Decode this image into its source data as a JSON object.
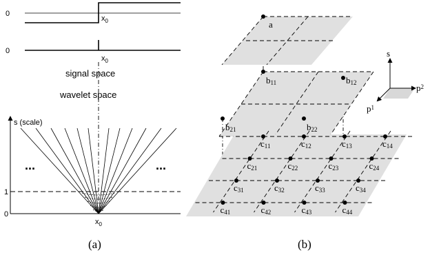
{
  "panel_a": {
    "caption": "(a)",
    "zero_label_top": "0",
    "zero_label_mid": "0",
    "x0_top": "x0",
    "x0_mid": "x0",
    "x0_bottom": "x0",
    "signal_space": "signal space",
    "wavelet_space": "wavelet space",
    "axis_label": "s (scale)",
    "tick_one": "1",
    "tick_zero": "0",
    "ellipsis_left": "...",
    "ellipsis_right": "..."
  },
  "panel_b": {
    "caption": "(b)",
    "axes": {
      "s": "s",
      "p2": "p2",
      "p1": "p1"
    },
    "node_a": "a",
    "level1": [
      "b11",
      "b12",
      "b21",
      "b22"
    ],
    "level2": [
      [
        "c11",
        "c12",
        "c13",
        "c14"
      ],
      [
        "c21",
        "c22",
        "c23",
        "c24"
      ],
      [
        "c31",
        "c32",
        "c33",
        "c34"
      ],
      [
        "c41",
        "c42",
        "c43",
        "c44"
      ]
    ]
  }
}
